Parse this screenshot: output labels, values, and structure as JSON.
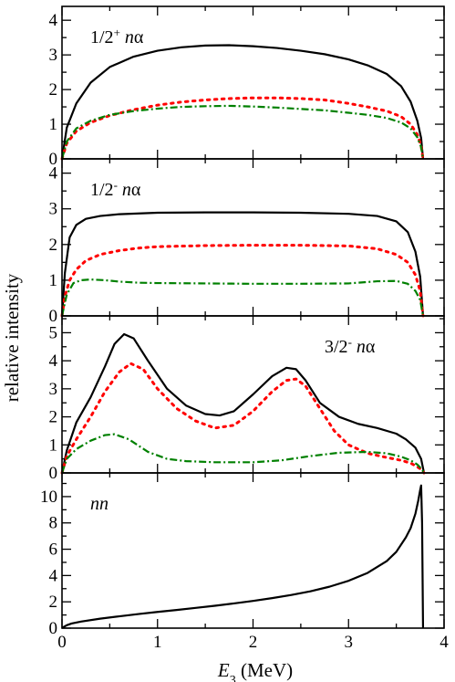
{
  "figure": {
    "ylabel": "relative intensity",
    "xlabel_symbol": "E",
    "xlabel_subscript": "3",
    "xlabel_unit": " (MeV)"
  },
  "chart_data": [
    {
      "type": "line",
      "panel_label": {
        "j": "1/2",
        "parity": "+",
        "pair": "nα"
      },
      "label_position": "top-left",
      "xlim": [
        0,
        4
      ],
      "ylim": [
        0,
        4.4
      ],
      "x_ticks": [
        0,
        1,
        2,
        3,
        4
      ],
      "y_ticks": [
        0,
        1,
        2,
        3,
        4
      ],
      "y_tick_labels": [
        "0",
        "1",
        "2",
        "3",
        "4"
      ],
      "grid": false,
      "series": [
        {
          "style": "solid",
          "color": "#000000",
          "x": [
            0,
            0.05,
            0.15,
            0.3,
            0.5,
            0.75,
            1.0,
            1.25,
            1.5,
            1.75,
            2.0,
            2.25,
            2.5,
            2.75,
            3.0,
            3.2,
            3.4,
            3.55,
            3.65,
            3.72,
            3.76,
            3.78
          ],
          "y": [
            0,
            0.9,
            1.6,
            2.2,
            2.65,
            2.95,
            3.12,
            3.22,
            3.27,
            3.28,
            3.25,
            3.2,
            3.12,
            3.02,
            2.87,
            2.7,
            2.45,
            2.1,
            1.65,
            1.1,
            0.6,
            0
          ]
        },
        {
          "style": "dotted",
          "color": "#ff0000",
          "x": [
            0,
            0.05,
            0.15,
            0.3,
            0.5,
            0.75,
            1.0,
            1.25,
            1.5,
            1.75,
            2.0,
            2.25,
            2.5,
            2.75,
            3.0,
            3.2,
            3.4,
            3.55,
            3.65,
            3.72,
            3.76,
            3.78
          ],
          "y": [
            0,
            0.45,
            0.8,
            1.05,
            1.25,
            1.42,
            1.55,
            1.64,
            1.7,
            1.74,
            1.76,
            1.76,
            1.74,
            1.7,
            1.6,
            1.5,
            1.38,
            1.22,
            1.0,
            0.7,
            0.38,
            0
          ]
        },
        {
          "style": "dashdot",
          "color": "#008000",
          "x": [
            0,
            0.05,
            0.15,
            0.3,
            0.5,
            0.75,
            1.0,
            1.25,
            1.5,
            1.75,
            2.0,
            2.25,
            2.5,
            2.75,
            3.0,
            3.2,
            3.4,
            3.55,
            3.65,
            3.72,
            3.76,
            3.78
          ],
          "y": [
            0,
            0.5,
            0.88,
            1.1,
            1.27,
            1.38,
            1.45,
            1.5,
            1.52,
            1.53,
            1.51,
            1.48,
            1.44,
            1.4,
            1.33,
            1.27,
            1.18,
            1.05,
            0.88,
            0.62,
            0.34,
            0
          ]
        }
      ]
    },
    {
      "type": "line",
      "panel_label": {
        "j": "1/2",
        "parity": "-",
        "pair": "nα"
      },
      "label_position": "top-left",
      "xlim": [
        0,
        4
      ],
      "ylim": [
        0,
        4.4
      ],
      "x_ticks": [
        0,
        1,
        2,
        3,
        4
      ],
      "y_ticks": [
        0,
        1,
        2,
        3,
        4
      ],
      "y_tick_labels": [
        "0",
        "1",
        "2",
        "3",
        "4"
      ],
      "grid": false,
      "series": [
        {
          "style": "solid",
          "color": "#000000",
          "x": [
            0,
            0.03,
            0.08,
            0.15,
            0.25,
            0.4,
            0.6,
            1.0,
            1.5,
            2.0,
            2.5,
            3.0,
            3.3,
            3.5,
            3.62,
            3.7,
            3.75,
            3.78
          ],
          "y": [
            0,
            1.2,
            2.2,
            2.55,
            2.72,
            2.8,
            2.85,
            2.89,
            2.9,
            2.9,
            2.89,
            2.86,
            2.8,
            2.65,
            2.35,
            1.8,
            1.1,
            0
          ]
        },
        {
          "style": "dotted",
          "color": "#ff0000",
          "x": [
            0,
            0.03,
            0.08,
            0.15,
            0.25,
            0.4,
            0.6,
            0.8,
            1.0,
            1.5,
            2.0,
            2.5,
            3.0,
            3.3,
            3.5,
            3.62,
            3.7,
            3.75,
            3.78
          ],
          "y": [
            0,
            0.55,
            1.0,
            1.3,
            1.55,
            1.72,
            1.83,
            1.9,
            1.94,
            1.97,
            1.98,
            1.98,
            1.96,
            1.88,
            1.72,
            1.5,
            1.15,
            0.7,
            0
          ]
        },
        {
          "style": "dashdot",
          "color": "#008000",
          "x": [
            0,
            0.05,
            0.12,
            0.2,
            0.3,
            0.45,
            0.6,
            0.8,
            1.0,
            1.5,
            2.0,
            2.5,
            3.0,
            3.3,
            3.5,
            3.62,
            3.7,
            3.75,
            3.78
          ],
          "y": [
            0,
            0.6,
            0.92,
            1.0,
            1.02,
            1.0,
            0.96,
            0.93,
            0.92,
            0.91,
            0.9,
            0.9,
            0.91,
            0.97,
            0.98,
            0.9,
            0.7,
            0.45,
            0
          ]
        }
      ]
    },
    {
      "type": "line",
      "panel_label": {
        "j": "3/2",
        "parity": "-",
        "pair": "nα"
      },
      "label_position": "top-right",
      "xlim": [
        0,
        4
      ],
      "ylim": [
        0,
        5.6
      ],
      "x_ticks": [
        0,
        1,
        2,
        3,
        4
      ],
      "y_ticks": [
        0,
        1,
        2,
        3,
        4,
        5
      ],
      "y_tick_labels": [
        "0",
        "1",
        "2",
        "3",
        "4",
        "5"
      ],
      "grid": false,
      "series": [
        {
          "style": "solid",
          "color": "#000000",
          "x": [
            0,
            0.05,
            0.15,
            0.3,
            0.45,
            0.55,
            0.65,
            0.75,
            0.9,
            1.1,
            1.3,
            1.5,
            1.65,
            1.8,
            2.0,
            2.2,
            2.35,
            2.45,
            2.55,
            2.7,
            2.9,
            3.1,
            3.3,
            3.5,
            3.6,
            3.7,
            3.76,
            3.79
          ],
          "y": [
            0,
            0.8,
            1.8,
            2.7,
            3.8,
            4.6,
            4.95,
            4.8,
            4.0,
            3.0,
            2.4,
            2.1,
            2.05,
            2.2,
            2.8,
            3.45,
            3.75,
            3.7,
            3.3,
            2.5,
            2.0,
            1.75,
            1.6,
            1.4,
            1.2,
            0.9,
            0.5,
            0
          ]
        },
        {
          "style": "dotted",
          "color": "#ff0000",
          "x": [
            0,
            0.05,
            0.15,
            0.3,
            0.45,
            0.6,
            0.72,
            0.85,
            1.0,
            1.2,
            1.4,
            1.6,
            1.8,
            2.0,
            2.2,
            2.35,
            2.45,
            2.55,
            2.7,
            2.85,
            3.0,
            3.2,
            3.4,
            3.55,
            3.65,
            3.72,
            3.77,
            3.79
          ],
          "y": [
            0,
            0.6,
            1.2,
            2.0,
            2.9,
            3.6,
            3.9,
            3.7,
            3.0,
            2.3,
            1.85,
            1.6,
            1.7,
            2.2,
            2.9,
            3.3,
            3.35,
            3.1,
            2.3,
            1.5,
            1.0,
            0.7,
            0.55,
            0.45,
            0.35,
            0.22,
            0.1,
            0
          ]
        },
        {
          "style": "dashdot",
          "color": "#008000",
          "x": [
            0,
            0.05,
            0.15,
            0.3,
            0.45,
            0.55,
            0.7,
            0.9,
            1.1,
            1.3,
            1.6,
            2.0,
            2.3,
            2.6,
            2.9,
            3.2,
            3.4,
            3.55,
            3.65,
            3.72,
            3.77,
            3.79
          ],
          "y": [
            0,
            0.5,
            0.85,
            1.15,
            1.35,
            1.38,
            1.2,
            0.75,
            0.5,
            0.42,
            0.38,
            0.38,
            0.45,
            0.6,
            0.72,
            0.75,
            0.7,
            0.58,
            0.45,
            0.3,
            0.12,
            0
          ]
        }
      ]
    },
    {
      "type": "line",
      "panel_label": {
        "j": "",
        "parity": "",
        "pair": "nn"
      },
      "label_position": "top-left",
      "xlim": [
        0,
        4
      ],
      "ylim": [
        0,
        11.8
      ],
      "x_ticks": [
        0,
        1,
        2,
        3,
        4
      ],
      "x_tick_labels": [
        "0",
        "1",
        "2",
        "3",
        "4"
      ],
      "y_ticks": [
        0,
        2,
        4,
        6,
        8,
        10
      ],
      "y_tick_labels": [
        "0",
        "2",
        "4",
        "6",
        "8",
        "10"
      ],
      "grid": false,
      "series": [
        {
          "style": "solid",
          "color": "#000000",
          "x": [
            0,
            0.02,
            0.05,
            0.1,
            0.2,
            0.4,
            0.6,
            0.8,
            1.0,
            1.2,
            1.4,
            1.6,
            1.8,
            2.0,
            2.2,
            2.4,
            2.6,
            2.8,
            3.0,
            3.2,
            3.4,
            3.5,
            3.6,
            3.65,
            3.7,
            3.73,
            3.75,
            3.76,
            3.77,
            3.78
          ],
          "y": [
            0,
            0.1,
            0.22,
            0.35,
            0.5,
            0.72,
            0.9,
            1.07,
            1.23,
            1.38,
            1.54,
            1.7,
            1.88,
            2.07,
            2.28,
            2.52,
            2.8,
            3.15,
            3.6,
            4.2,
            5.1,
            5.8,
            6.9,
            7.6,
            8.7,
            9.7,
            10.5,
            10.85,
            8.0,
            0
          ]
        }
      ]
    }
  ]
}
